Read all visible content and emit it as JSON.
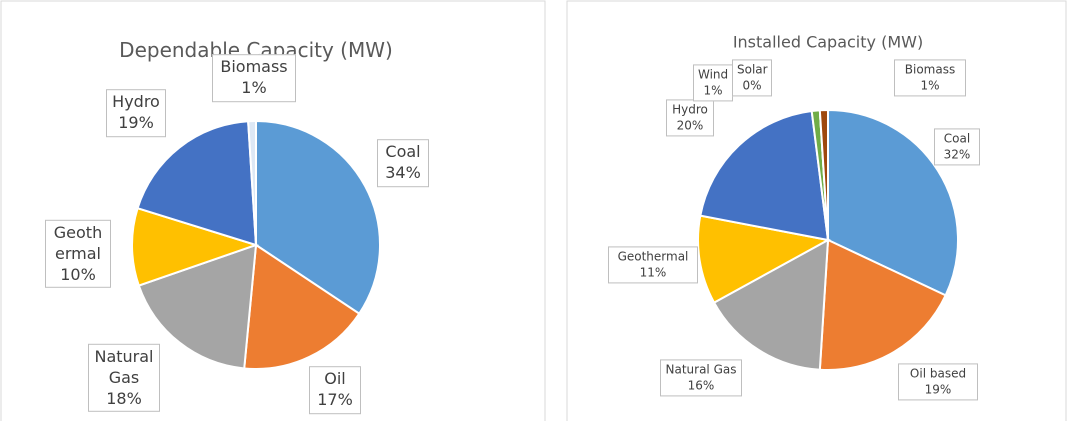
{
  "chart_data": [
    {
      "type": "pie",
      "title": "Dependable Capacity (MW)",
      "categories": [
        "Coal",
        "Oil",
        "Natural Gas",
        "Geothermal",
        "Hydro",
        "Biomass"
      ],
      "values": [
        34,
        17,
        18,
        10,
        19,
        1
      ],
      "value_labels": [
        "34%",
        "17%",
        "18%",
        "10%",
        "19%",
        "1%"
      ],
      "colors": [
        "#5b9bd5",
        "#ed7d31",
        "#a5a5a5",
        "#ffc000",
        "#4472c4",
        "#dde8f5"
      ]
    },
    {
      "type": "pie",
      "title": "Installed Capacity (MW)",
      "categories": [
        "Coal",
        "Oil based",
        "Natural Gas",
        "Geothermal",
        "Hydro",
        "Wind",
        "Solar",
        "Biomass"
      ],
      "values": [
        32,
        19,
        16,
        11,
        20,
        1,
        0,
        1
      ],
      "value_labels": [
        "32%",
        "19%",
        "16%",
        "11%",
        "20%",
        "1%",
        "0%",
        "1%"
      ],
      "colors": [
        "#5b9bd5",
        "#ed7d31",
        "#a5a5a5",
        "#ffc000",
        "#4472c4",
        "#70ad47",
        "#264478",
        "#9e480e"
      ]
    }
  ]
}
